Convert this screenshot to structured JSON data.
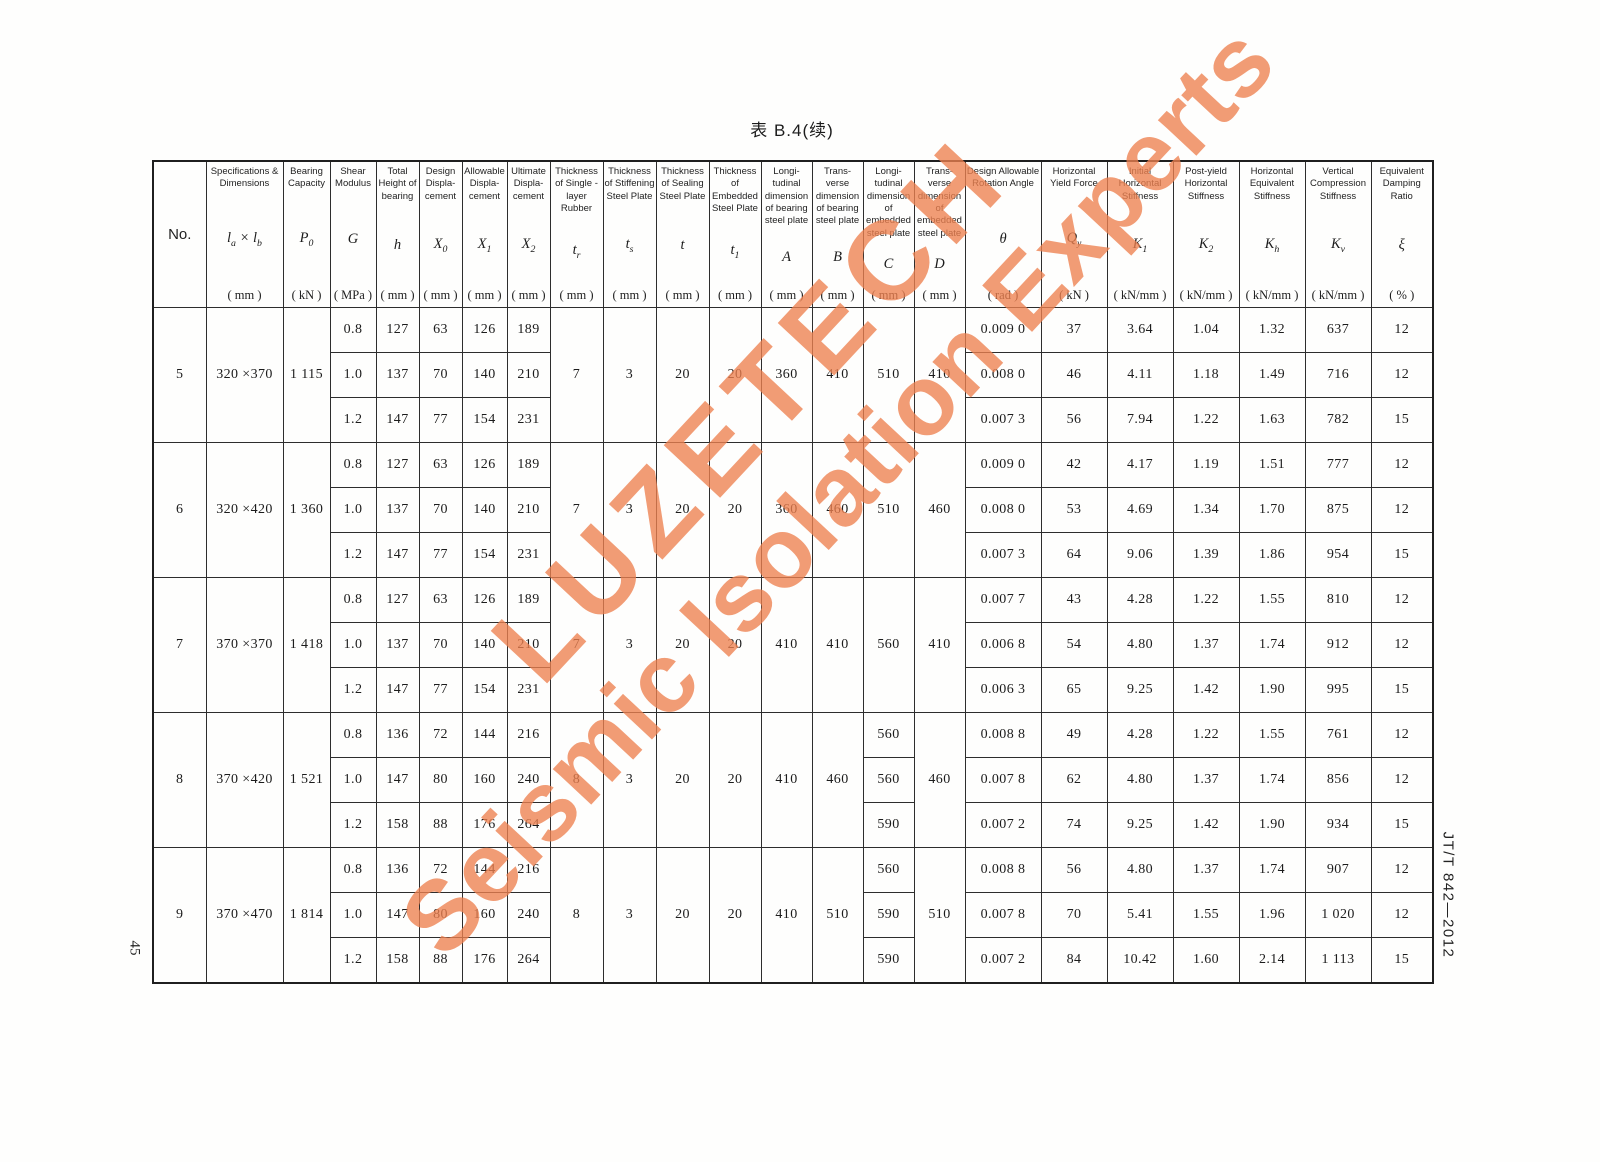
{
  "page": {
    "title": "表 B.4(续)",
    "page_number": "45",
    "standard_code": "JT/T 842—2012",
    "watermark": {
      "line1": "LUZETECH",
      "line2": "Seismic Isolation Experts",
      "color": "#ee8150"
    }
  },
  "table": {
    "columns": [
      {
        "name": "No.",
        "symbol": null,
        "unit": null
      },
      {
        "name": "Specifications & Dimensions",
        "symbol": "<i>l</i><sub>a</sub> × <i>l</i><sub>b</sub>",
        "unit": "( mm )"
      },
      {
        "name": "Bearing Capacity",
        "symbol": "<i>P</i><sub>0</sub>",
        "unit": "( kN )"
      },
      {
        "name": "Shear Modulus",
        "symbol": "<i>G</i>",
        "unit": "( MPa )"
      },
      {
        "name": "Total Height of bearing",
        "symbol": "<i>h</i>",
        "unit": "( mm )"
      },
      {
        "name": "Design Displa-cement",
        "symbol": "<i>X</i><sub>0</sub>",
        "unit": "( mm )"
      },
      {
        "name": "Allowable Displa-cement",
        "symbol": "<i>X</i><sub>1</sub>",
        "unit": "( mm )"
      },
      {
        "name": "Ultimate Displa-cement",
        "symbol": "<i>X</i><sub>2</sub>",
        "unit": "( mm )"
      },
      {
        "name": "Thickness of Single -layer Rubber",
        "symbol": "<i>t</i><sub>r</sub>",
        "unit": "( mm )"
      },
      {
        "name": "Thickness of Stiffening Steel Plate",
        "symbol": "<i>t</i><sub>s</sub>",
        "unit": "( mm )"
      },
      {
        "name": "Thickness of Sealing Steel Plate",
        "symbol": "<i>t</i>",
        "unit": "( mm )"
      },
      {
        "name": "Thickness of Embedded Steel Plate",
        "symbol": "<i>t</i><sub>1</sub>",
        "unit": "( mm )"
      },
      {
        "name": "Longi-tudinal dimension of bearing steel plate",
        "symbol": "<i>A</i>",
        "unit": "( mm )"
      },
      {
        "name": "Trans-verse dimension of bearing steel plate",
        "symbol": "<i>B</i>",
        "unit": "( mm )"
      },
      {
        "name": "Longi-tudinal dimension of embedded steel plate",
        "symbol": "<i>C</i>",
        "unit": "( mm )"
      },
      {
        "name": "Trans-verse dimension of embedded steel plate",
        "symbol": "<i>D</i>",
        "unit": "( mm )"
      },
      {
        "name": "Design Allowable Rotation Angle",
        "symbol": "<i>θ</i>",
        "unit": "( rad )"
      },
      {
        "name": "Horizontal Yield Force",
        "symbol": "<i>Q</i><sub>y</sub>",
        "unit": "( kN )"
      },
      {
        "name": "Initial Horizontal Stiffness",
        "symbol": "<i>K</i><sub>1</sub>",
        "unit": "( kN/mm )"
      },
      {
        "name": "Post-yield Horizontal Stiffness",
        "symbol": "<i>K</i><sub>2</sub>",
        "unit": "( kN/mm )"
      },
      {
        "name": "Horizontal Equivalent Stiffness",
        "symbol": "<i>K</i><sub>h</sub>",
        "unit": "( kN/mm )"
      },
      {
        "name": "Vertical Compression Stiffness",
        "symbol": "<i>K</i><sub>v</sub>",
        "unit": "( kN/mm )"
      },
      {
        "name": "Equivalent Damping Ratio",
        "symbol": "<i>ξ</i>",
        "unit": "( % )"
      }
    ],
    "groups": [
      {
        "no": "5",
        "spec": "320 ×370",
        "p0": "1 115",
        "tr": "7",
        "ts": "3",
        "t": "20",
        "t1": "20",
        "a": "360",
        "b": "410",
        "c": "510",
        "d": "410",
        "rows": [
          {
            "g": "0.8",
            "h": "127",
            "x0": "63",
            "x1": "126",
            "x2": "189",
            "theta": "0.009 0",
            "qy": "37",
            "k1": "3.64",
            "k2": "1.04",
            "kh": "1.32",
            "kv": "637",
            "xi": "12"
          },
          {
            "g": "1.0",
            "h": "137",
            "x0": "70",
            "x1": "140",
            "x2": "210",
            "theta": "0.008 0",
            "qy": "46",
            "k1": "4.11",
            "k2": "1.18",
            "kh": "1.49",
            "kv": "716",
            "xi": "12"
          },
          {
            "g": "1.2",
            "h": "147",
            "x0": "77",
            "x1": "154",
            "x2": "231",
            "theta": "0.007 3",
            "qy": "56",
            "k1": "7.94",
            "k2": "1.22",
            "kh": "1.63",
            "kv": "782",
            "xi": "15"
          }
        ]
      },
      {
        "no": "6",
        "spec": "320 ×420",
        "p0": "1 360",
        "tr": "7",
        "ts": "3",
        "t": "20",
        "t1": "20",
        "a": "360",
        "b": "460",
        "c": "510",
        "d": "460",
        "rows": [
          {
            "g": "0.8",
            "h": "127",
            "x0": "63",
            "x1": "126",
            "x2": "189",
            "theta": "0.009 0",
            "qy": "42",
            "k1": "4.17",
            "k2": "1.19",
            "kh": "1.51",
            "kv": "777",
            "xi": "12"
          },
          {
            "g": "1.0",
            "h": "137",
            "x0": "70",
            "x1": "140",
            "x2": "210",
            "theta": "0.008 0",
            "qy": "53",
            "k1": "4.69",
            "k2": "1.34",
            "kh": "1.70",
            "kv": "875",
            "xi": "12"
          },
          {
            "g": "1.2",
            "h": "147",
            "x0": "77",
            "x1": "154",
            "x2": "231",
            "theta": "0.007 3",
            "qy": "64",
            "k1": "9.06",
            "k2": "1.39",
            "kh": "1.86",
            "kv": "954",
            "xi": "15"
          }
        ]
      },
      {
        "no": "7",
        "spec": "370 ×370",
        "p0": "1 418",
        "tr": "7",
        "ts": "3",
        "t": "20",
        "t1": "20",
        "a": "410",
        "b": "410",
        "c": "560",
        "d": "410",
        "rows": [
          {
            "g": "0.8",
            "h": "127",
            "x0": "63",
            "x1": "126",
            "x2": "189",
            "theta": "0.007 7",
            "qy": "43",
            "k1": "4.28",
            "k2": "1.22",
            "kh": "1.55",
            "kv": "810",
            "xi": "12"
          },
          {
            "g": "1.0",
            "h": "137",
            "x0": "70",
            "x1": "140",
            "x2": "210",
            "theta": "0.006 8",
            "qy": "54",
            "k1": "4.80",
            "k2": "1.37",
            "kh": "1.74",
            "kv": "912",
            "xi": "12"
          },
          {
            "g": "1.2",
            "h": "147",
            "x0": "77",
            "x1": "154",
            "x2": "231",
            "theta": "0.006 3",
            "qy": "65",
            "k1": "9.25",
            "k2": "1.42",
            "kh": "1.90",
            "kv": "995",
            "xi": "15"
          }
        ]
      },
      {
        "no": "8",
        "spec": "370 ×420",
        "p0": "1 521",
        "tr": "8",
        "ts": "3",
        "t": "20",
        "t1": "20",
        "a": "410",
        "b": "460",
        "c": null,
        "d": "460",
        "rows": [
          {
            "g": "0.8",
            "h": "136",
            "x0": "72",
            "x1": "144",
            "x2": "216",
            "c": "560",
            "theta": "0.008 8",
            "qy": "49",
            "k1": "4.28",
            "k2": "1.22",
            "kh": "1.55",
            "kv": "761",
            "xi": "12"
          },
          {
            "g": "1.0",
            "h": "147",
            "x0": "80",
            "x1": "160",
            "x2": "240",
            "c": "560",
            "theta": "0.007 8",
            "qy": "62",
            "k1": "4.80",
            "k2": "1.37",
            "kh": "1.74",
            "kv": "856",
            "xi": "12"
          },
          {
            "g": "1.2",
            "h": "158",
            "x0": "88",
            "x1": "176",
            "x2": "264",
            "c": "590",
            "theta": "0.007 2",
            "qy": "74",
            "k1": "9.25",
            "k2": "1.42",
            "kh": "1.90",
            "kv": "934",
            "xi": "15"
          }
        ]
      },
      {
        "no": "9",
        "spec": "370 ×470",
        "p0": "1 814",
        "tr": "8",
        "ts": "3",
        "t": "20",
        "t1": "20",
        "a": "410",
        "b": "510",
        "c": null,
        "d": "510",
        "rows": [
          {
            "g": "0.8",
            "h": "136",
            "x0": "72",
            "x1": "144",
            "x2": "216",
            "c": "560",
            "theta": "0.008 8",
            "qy": "56",
            "k1": "4.80",
            "k2": "1.37",
            "kh": "1.74",
            "kv": "907",
            "xi": "12"
          },
          {
            "g": "1.0",
            "h": "147",
            "x0": "80",
            "x1": "160",
            "x2": "240",
            "c": "590",
            "theta": "0.007 8",
            "qy": "70",
            "k1": "5.41",
            "k2": "1.55",
            "kh": "1.96",
            "kv": "1 020",
            "xi": "12"
          },
          {
            "g": "1.2",
            "h": "158",
            "x0": "88",
            "x1": "176",
            "x2": "264",
            "c": "590",
            "theta": "0.007 2",
            "qy": "84",
            "k1": "10.42",
            "k2": "1.60",
            "kh": "2.14",
            "kv": "1 113",
            "xi": "15"
          }
        ]
      }
    ]
  }
}
